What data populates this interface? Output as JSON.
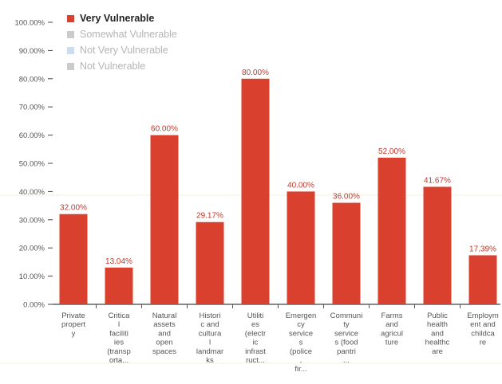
{
  "chart_data": {
    "type": "bar",
    "categories": [
      "Private property",
      "Critical facilities (transporta...",
      "Natural assets and open spaces",
      "Historic and cultural landmarks",
      "Utilities (electric infrastruct...",
      "Emergency services (police, fir...",
      "Community services (food pantri...",
      "Farms and agriculture",
      "Public health and healthcare",
      "Employment and childcare"
    ],
    "category_lines": [
      [
        "Private",
        "propert",
        "y"
      ],
      [
        "Critica",
        "l",
        "faciliti",
        "ies",
        "(transp",
        "orta..."
      ],
      [
        "Natural",
        "assets",
        "and",
        "open",
        "spaces"
      ],
      [
        "Histori",
        "c and",
        "cultura",
        "l",
        "landmar",
        "ks"
      ],
      [
        "Utiliti",
        "es",
        "(electr",
        "ic",
        "infrast",
        "ruct..."
      ],
      [
        "Emergen",
        "cy",
        "service",
        "s",
        "(police",
        ",",
        "fir..."
      ],
      [
        "Communi",
        "ty",
        "service",
        "s (food",
        "pantri",
        "..."
      ],
      [
        "Farms",
        "and",
        "agricul",
        "ture"
      ],
      [
        "Public",
        "health",
        "and",
        "healthc",
        "are"
      ],
      [
        "Employm",
        "ent and",
        "childca",
        "re"
      ]
    ],
    "series": [
      {
        "name": "Very Vulnerable",
        "values": [
          32.0,
          13.04,
          60.0,
          29.17,
          80.0,
          40.0,
          36.0,
          52.0,
          41.67,
          17.39
        ],
        "labels": [
          "32.00%",
          "13.04%",
          "60.00%",
          "29.17%",
          "80.00%",
          "40.00%",
          "36.00%",
          "52.00%",
          "41.67%",
          "17.39%"
        ]
      }
    ],
    "legend": [
      {
        "name": "Very Vulnerable",
        "color": "#d9412e",
        "active": true
      },
      {
        "name": "Somewhat Vulnerable",
        "color": "#a9a9a9",
        "active": false
      },
      {
        "name": "Not Very Vulnerable",
        "color": "#a9c8e6",
        "active": false
      },
      {
        "name": "Not Vulnerable",
        "color": "#a9a9a9",
        "active": false
      }
    ],
    "y_ticks": [
      "0.00%",
      "10.00%",
      "20.00%",
      "30.00%",
      "40.00%",
      "50.00%",
      "60.00%",
      "70.00%",
      "80.00%",
      "90.00%",
      "100.00%"
    ],
    "ylim": [
      0,
      100
    ],
    "legend_position": "top-left",
    "grid": false,
    "bar_color": "#d9412e",
    "label_color": "#c0392b"
  }
}
